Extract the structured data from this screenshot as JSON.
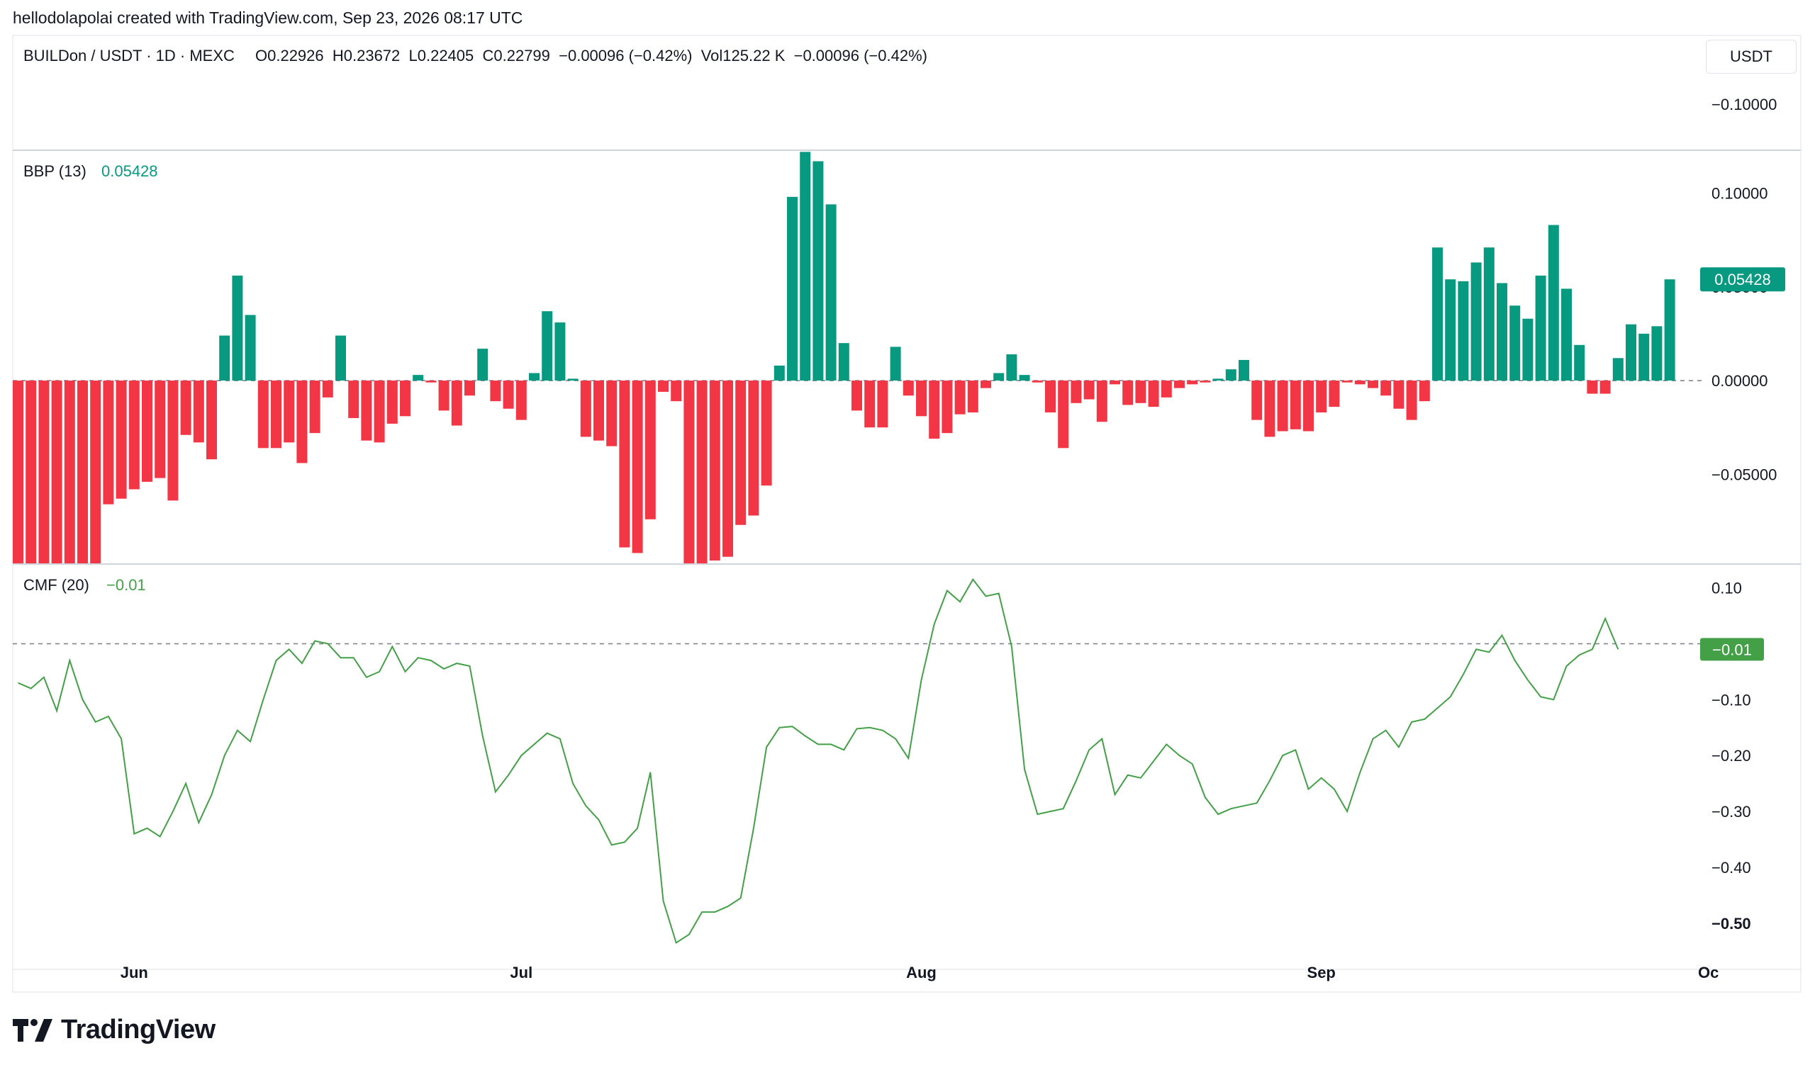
{
  "caption": "hellodolapolai created with TradingView.com, Sep 23, 2026 08:17 UTC",
  "header": {
    "symbol": "BUILDon / USDT · 1D · MEXC",
    "ohlc": "O0.22926  H0.23672  L0.22405  C0.22799  −0.00096 (−0.42%)  Vol125.22 K  −0.00096 (−0.42%)"
  },
  "unit_label": "USDT",
  "brand": "TradingView",
  "colors": {
    "up": "#089981",
    "down": "#f23645",
    "cmf_line": "#43a047",
    "grid": "#e0e3eb",
    "zero_line": "#787b86"
  },
  "chart_data": [
    {
      "type": "bar",
      "title": "BBP (13)",
      "last_value_label": "0.05428",
      "price_pane_tick": "−0.10000",
      "ylim": [
        -0.0975,
        0.1225
      ],
      "yticks": [
        {
          "value": 0.1,
          "label": "0.10000"
        },
        {
          "value": 0.05,
          "label": "0.05000"
        },
        {
          "value": 0.0,
          "label": "0.00000"
        },
        {
          "value": -0.05,
          "label": "−0.05000"
        }
      ],
      "values": [
        -0.12,
        -0.12,
        -0.12,
        -0.12,
        -0.12,
        -0.12,
        -0.12,
        -0.066,
        -0.063,
        -0.058,
        -0.054,
        -0.052,
        -0.064,
        -0.029,
        -0.033,
        -0.042,
        0.024,
        0.056,
        0.035,
        -0.036,
        -0.036,
        -0.033,
        -0.044,
        -0.028,
        -0.009,
        0.024,
        -0.02,
        -0.032,
        -0.033,
        -0.023,
        -0.019,
        0.003,
        -0.001,
        -0.016,
        -0.024,
        -0.008,
        0.017,
        -0.011,
        -0.015,
        -0.021,
        0.004,
        0.037,
        0.031,
        0.001,
        -0.03,
        -0.032,
        -0.035,
        -0.089,
        -0.092,
        -0.074,
        -0.006,
        -0.011,
        -0.098,
        -0.098,
        -0.096,
        -0.094,
        -0.077,
        -0.072,
        -0.056,
        0.008,
        0.098,
        0.122,
        0.117,
        0.094,
        0.02,
        -0.016,
        -0.025,
        -0.025,
        0.018,
        -0.008,
        -0.019,
        -0.031,
        -0.028,
        -0.018,
        -0.017,
        -0.004,
        0.004,
        0.014,
        0.003,
        -0.001,
        -0.017,
        -0.036,
        -0.012,
        -0.01,
        -0.022,
        -0.002,
        -0.013,
        -0.012,
        -0.014,
        -0.009,
        -0.004,
        -0.002,
        -0.001,
        0.001,
        0.006,
        0.011,
        -0.021,
        -0.03,
        -0.027,
        -0.026,
        -0.027,
        -0.017,
        -0.014,
        -0.001,
        -0.002,
        -0.004,
        -0.008,
        -0.015,
        -0.021,
        -0.011,
        0.071,
        0.054,
        0.053,
        0.063,
        0.071,
        0.052,
        0.04,
        0.033,
        0.056,
        0.083,
        0.049,
        0.019,
        -0.007,
        -0.007,
        0.012,
        0.03,
        0.025,
        0.029,
        0.054
      ]
    },
    {
      "type": "line",
      "title": "CMF (20)",
      "last_value_label": "−0.01",
      "ylim": [
        -0.58,
        0.14
      ],
      "yticks": [
        {
          "value": 0.1,
          "label": "0.10"
        },
        {
          "value": -0.1,
          "label": "−0.10"
        },
        {
          "value": -0.2,
          "label": "−0.20"
        },
        {
          "value": -0.3,
          "label": "−0.30"
        },
        {
          "value": -0.4,
          "label": "−0.40"
        },
        {
          "value": -0.5,
          "label": "−0.50"
        }
      ],
      "values": [
        -0.07,
        -0.08,
        -0.06,
        -0.12,
        -0.03,
        -0.1,
        -0.14,
        -0.13,
        -0.17,
        -0.34,
        -0.33,
        -0.345,
        -0.3,
        -0.25,
        -0.32,
        -0.27,
        -0.2,
        -0.155,
        -0.175,
        -0.1,
        -0.03,
        -0.01,
        -0.035,
        0.005,
        0.0,
        -0.025,
        -0.025,
        -0.06,
        -0.05,
        -0.005,
        -0.05,
        -0.025,
        -0.03,
        -0.045,
        -0.035,
        -0.04,
        -0.165,
        -0.265,
        -0.235,
        -0.2,
        -0.18,
        -0.16,
        -0.17,
        -0.25,
        -0.29,
        -0.315,
        -0.36,
        -0.355,
        -0.33,
        -0.23,
        -0.46,
        -0.535,
        -0.52,
        -0.48,
        -0.48,
        -0.47,
        -0.455,
        -0.33,
        -0.185,
        -0.15,
        -0.148,
        -0.165,
        -0.18,
        -0.18,
        -0.19,
        -0.152,
        -0.15,
        -0.155,
        -0.17,
        -0.205,
        -0.065,
        0.035,
        0.095,
        0.075,
        0.115,
        0.085,
        0.09,
        -0.005,
        -0.225,
        -0.305,
        -0.3,
        -0.295,
        -0.245,
        -0.19,
        -0.17,
        -0.27,
        -0.235,
        -0.24,
        -0.21,
        -0.18,
        -0.2,
        -0.215,
        -0.275,
        -0.305,
        -0.295,
        -0.29,
        -0.285,
        -0.245,
        -0.2,
        -0.19,
        -0.26,
        -0.24,
        -0.26,
        -0.3,
        -0.23,
        -0.17,
        -0.155,
        -0.185,
        -0.14,
        -0.135,
        -0.115,
        -0.095,
        -0.055,
        -0.01,
        -0.015,
        0.015,
        -0.03,
        -0.065,
        -0.095,
        -0.1,
        -0.04,
        -0.02,
        -0.01,
        0.045,
        -0.01
      ]
    }
  ],
  "x_axis": {
    "labels": [
      {
        "index": 9,
        "label": "Jun"
      },
      {
        "index": 39,
        "label": "Jul"
      },
      {
        "index": 70,
        "label": "Aug"
      },
      {
        "index": 101,
        "label": "Sep"
      },
      {
        "index": 131,
        "label": "Oc"
      }
    ]
  }
}
